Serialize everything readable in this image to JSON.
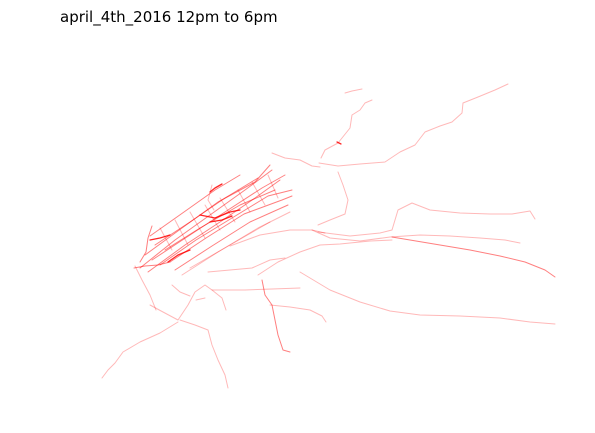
{
  "title": "april_4th_2016 12pm to 6pm",
  "colors": {
    "trace": "#ff0000",
    "background": "#ffffff",
    "title_text": "#000000"
  }
}
